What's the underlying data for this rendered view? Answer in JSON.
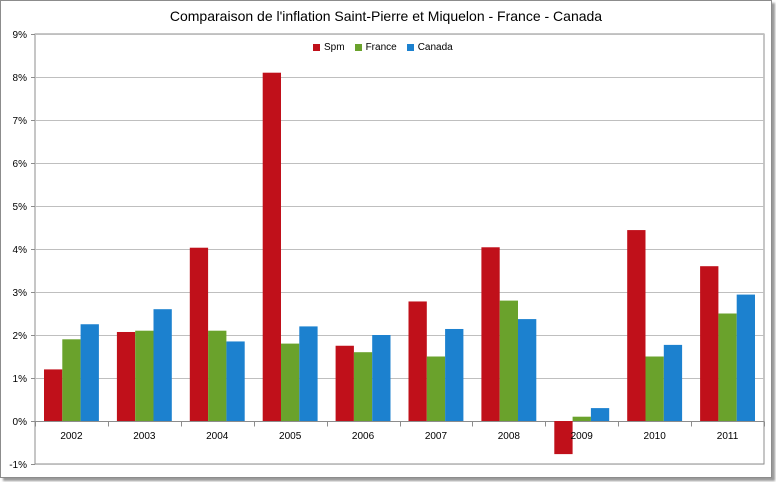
{
  "chart_data": {
    "type": "bar",
    "title": "Comparaison de l'inflation Saint-Pierre et Miquelon - France - Canada",
    "xlabel": "",
    "ylabel": "",
    "categories": [
      "2002",
      "2003",
      "2004",
      "2005",
      "2006",
      "2007",
      "2008",
      "2009",
      "2010",
      "2011"
    ],
    "series": [
      {
        "name": "Spm",
        "color": "#c0101a",
        "values": [
          1.2,
          2.07,
          4.03,
          8.1,
          1.75,
          2.78,
          4.04,
          -0.77,
          4.44,
          3.6
        ]
      },
      {
        "name": "France",
        "color": "#6aa22c",
        "values": [
          1.9,
          2.1,
          2.1,
          1.8,
          1.6,
          1.5,
          2.8,
          0.1,
          1.5,
          2.5
        ]
      },
      {
        "name": "Canada",
        "color": "#1c81cf",
        "values": [
          2.25,
          2.6,
          1.85,
          2.2,
          2.0,
          2.14,
          2.37,
          0.3,
          1.77,
          2.94
        ]
      }
    ],
    "ylim": [
      -1,
      9
    ],
    "yticks": [
      -1,
      0,
      1,
      2,
      3,
      4,
      5,
      6,
      7,
      8,
      9
    ],
    "ytick_labels": [
      "-1%",
      "0%",
      "1%",
      "2%",
      "3%",
      "4%",
      "5%",
      "6%",
      "7%",
      "8%",
      "9%"
    ],
    "grid": true,
    "legend_position": "top-center"
  }
}
